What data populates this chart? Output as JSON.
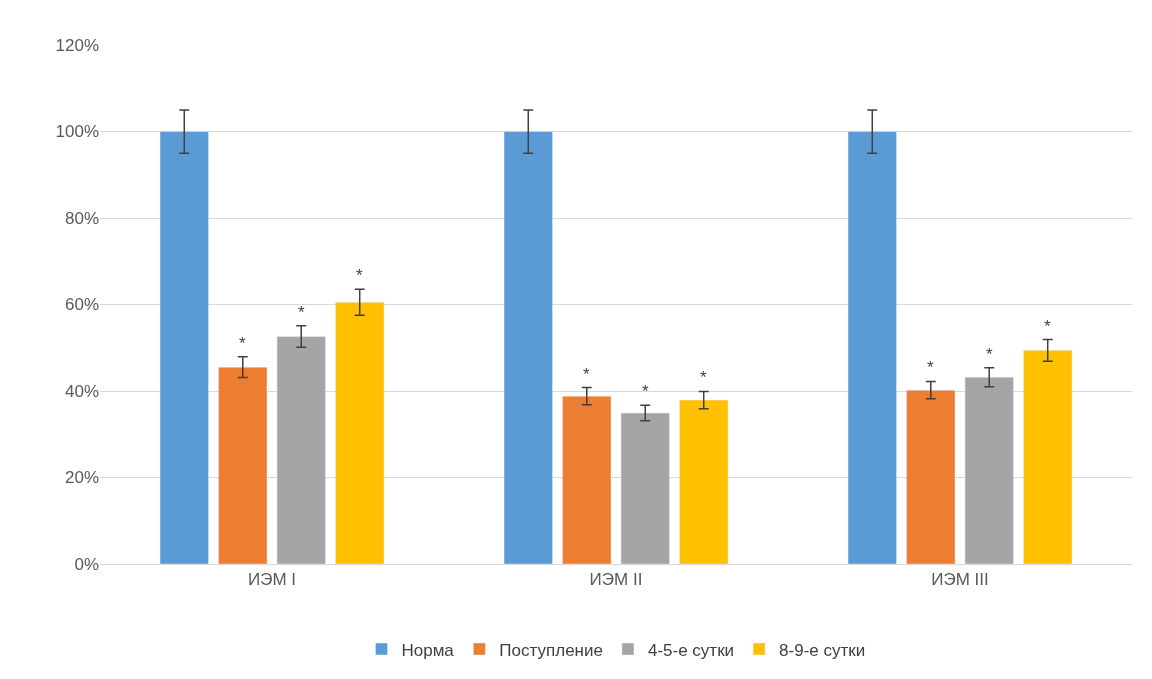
{
  "chart_data": {
    "type": "bar",
    "categories": [
      "ИЭМ I",
      "ИЭМ II",
      "ИЭМ III"
    ],
    "series": [
      {
        "name": "Норма",
        "color": "#5b9bd5",
        "values": [
          100,
          100,
          100
        ],
        "errors": [
          5,
          5,
          5
        ]
      },
      {
        "name": "Поступление",
        "color": "#ed7d31",
        "values": [
          45.5,
          38.8,
          40.2
        ],
        "errors": [
          2.4,
          2,
          2
        ],
        "value_labels": [
          "*",
          "*",
          "*"
        ]
      },
      {
        "name": "4-5-е сутки",
        "color": "#a5a5a5",
        "values": [
          52.6,
          34.9,
          43.2
        ],
        "errors": [
          2.5,
          1.8,
          2.2
        ],
        "value_labels": [
          "*",
          "*",
          "*"
        ]
      },
      {
        "name": "8-9-е сутки",
        "color": "#ffc000",
        "values": [
          60.5,
          37.9,
          49.4
        ],
        "errors": [
          3,
          2,
          2.5
        ],
        "value_labels": [
          "*",
          "*",
          "*"
        ]
      }
    ],
    "ylim": [
      0,
      120
    ],
    "yticks": [
      {
        "value": 0,
        "label": "0%"
      },
      {
        "value": 20,
        "label": "20%"
      },
      {
        "value": 40,
        "label": "40%"
      },
      {
        "value": 60,
        "label": "60%"
      },
      {
        "value": 80,
        "label": "80%"
      },
      {
        "value": 100,
        "label": "100%"
      },
      {
        "value": 120,
        "label": "120%"
      }
    ],
    "grid": "y",
    "legend": "bottom"
  }
}
